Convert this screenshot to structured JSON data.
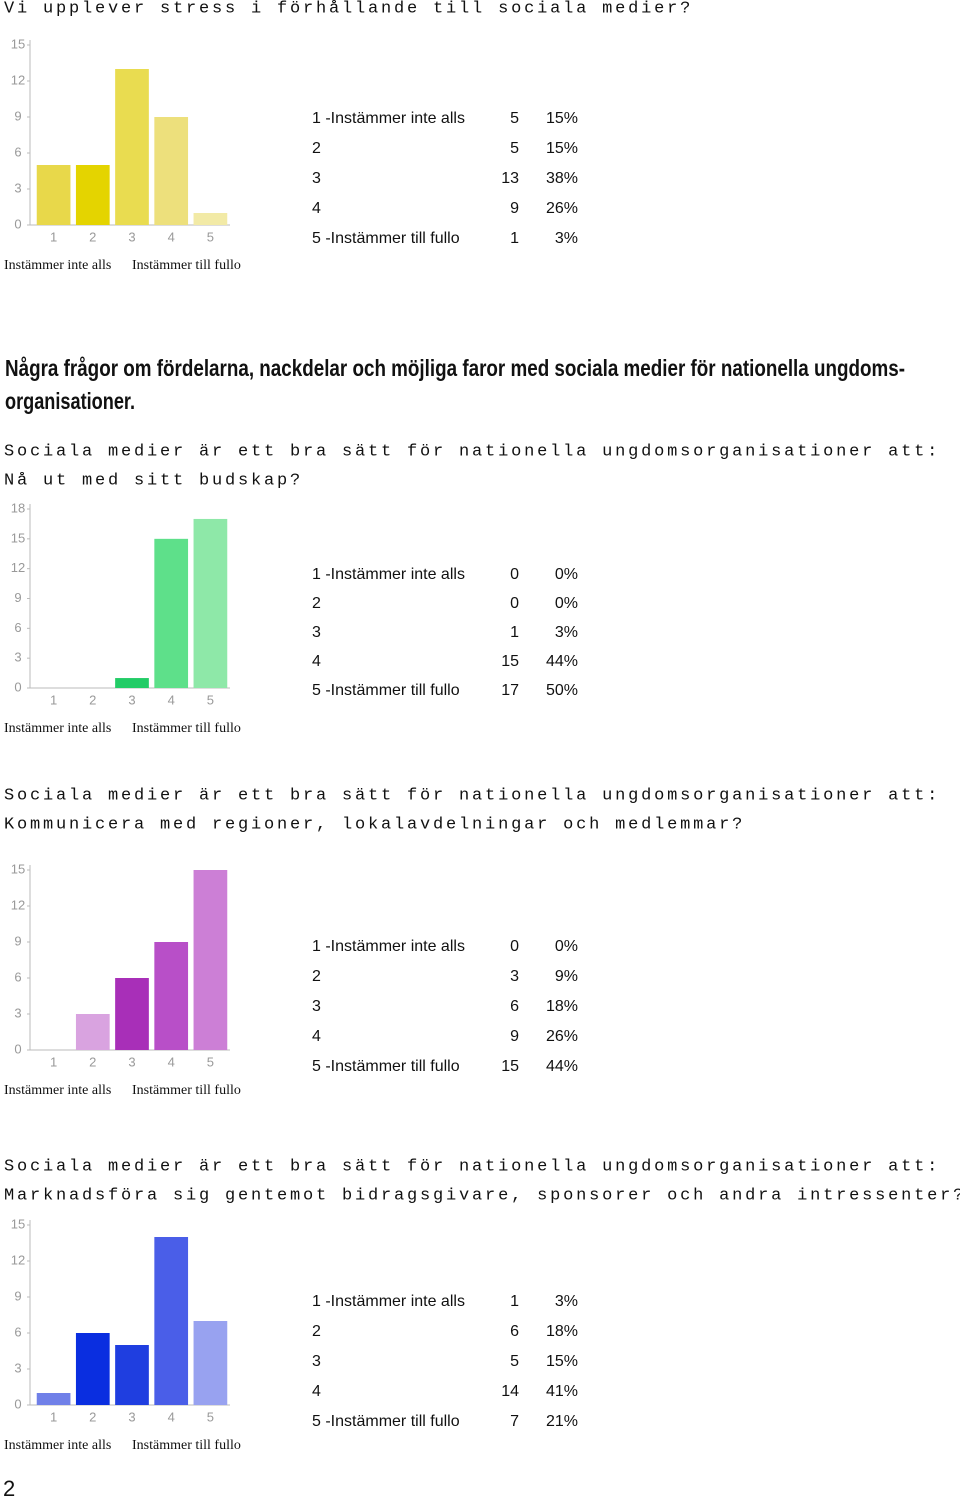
{
  "sections": [
    {
      "question_lines": [
        "Vi upplever stress i förhållande till sociala medier?"
      ],
      "chart": {
        "type": "bar",
        "categories": [
          "1",
          "2",
          "3",
          "4",
          "5"
        ],
        "values": [
          5,
          5,
          13,
          9,
          1
        ],
        "colors": [
          "#e8d84a",
          "#e4d400",
          "#e9dc50",
          "#ede07c",
          "#f2eaa6"
        ],
        "ylim": [
          0,
          15
        ],
        "yticks": [
          0,
          3,
          6,
          9,
          12,
          15
        ],
        "x_left_label": "Instämmer inte alls",
        "x_right_label": "Instämmer till fullo"
      },
      "table": {
        "labels": [
          "1 -Instämmer inte alls",
          "2",
          "3",
          "4",
          "5 -Instämmer till fullo"
        ],
        "percents": [
          "15%",
          "15%",
          "38%",
          "26%",
          "3%"
        ]
      }
    },
    {
      "question_lines": [
        "Sociala medier är ett bra sätt för nationella ungdomsorganisationer att:",
        "Nå ut med sitt budskap?"
      ],
      "chart": {
        "type": "bar",
        "categories": [
          "1",
          "2",
          "3",
          "4",
          "5"
        ],
        "values": [
          0,
          0,
          1,
          15,
          17
        ],
        "colors": [
          "#1fcf63",
          "#1fcf63",
          "#22cc66",
          "#5ee08a",
          "#8ee8a8"
        ],
        "ylim": [
          0,
          18
        ],
        "yticks": [
          0,
          3,
          6,
          9,
          12,
          15,
          18
        ],
        "x_left_label": "Instämmer inte alls",
        "x_right_label": "Instämmer till fullo"
      },
      "table": {
        "labels": [
          "1 -Instämmer inte alls",
          "2",
          "3",
          "4",
          "5 -Instämmer till fullo"
        ],
        "percents": [
          "0%",
          "0%",
          "3%",
          "44%",
          "50%"
        ]
      }
    },
    {
      "question_lines": [
        "Sociala medier är ett bra sätt för nationella ungdomsorganisationer att:",
        "Kommunicera med regioner, lokalavdelningar och medlemmar?"
      ],
      "chart": {
        "type": "bar",
        "categories": [
          "1",
          "2",
          "3",
          "4",
          "5"
        ],
        "values": [
          0,
          3,
          6,
          9,
          15
        ],
        "colors": [
          "#d9a3e0",
          "#d9a3e0",
          "#a82fb8",
          "#b84fc8",
          "#cc7fd6"
        ],
        "ylim": [
          0,
          15
        ],
        "yticks": [
          0,
          3,
          6,
          9,
          12,
          15
        ],
        "x_left_label": "Instämmer inte alls",
        "x_right_label": "Instämmer till fullo"
      },
      "table": {
        "labels": [
          "1 -Instämmer inte alls",
          "2",
          "3",
          "4",
          "5 -Instämmer till fullo"
        ],
        "percents": [
          "0%",
          "9%",
          "18%",
          "26%",
          "44%"
        ]
      }
    },
    {
      "question_lines": [
        "Sociala medier är ett bra sätt för nationella ungdomsorganisationer att:",
        "Marknadsföra sig gentemot bidragsgivare, sponsorer och andra intressenter?"
      ],
      "chart": {
        "type": "bar",
        "categories": [
          "1",
          "2",
          "3",
          "4",
          "5"
        ],
        "values": [
          1,
          6,
          5,
          14,
          7
        ],
        "colors": [
          "#7080e8",
          "#0a2ee0",
          "#1f3ee0",
          "#4a5ee8",
          "#98a2f0"
        ],
        "ylim": [
          0,
          15
        ],
        "yticks": [
          0,
          3,
          6,
          9,
          12,
          15
        ],
        "x_left_label": "Instämmer inte alls",
        "x_right_label": "Instämmer till fullo"
      },
      "table": {
        "labels": [
          "1 -Instämmer inte alls",
          "2",
          "3",
          "4",
          "5 -Instämmer till fullo"
        ],
        "percents": [
          "3%",
          "18%",
          "15%",
          "41%",
          "21%"
        ]
      }
    }
  ],
  "heading_lines": [
    "Några frågor om fördelarna, nackdelar och möjliga faror med sociala medier för nationella ungdoms-",
    "organisationer."
  ],
  "page_number": "2"
}
